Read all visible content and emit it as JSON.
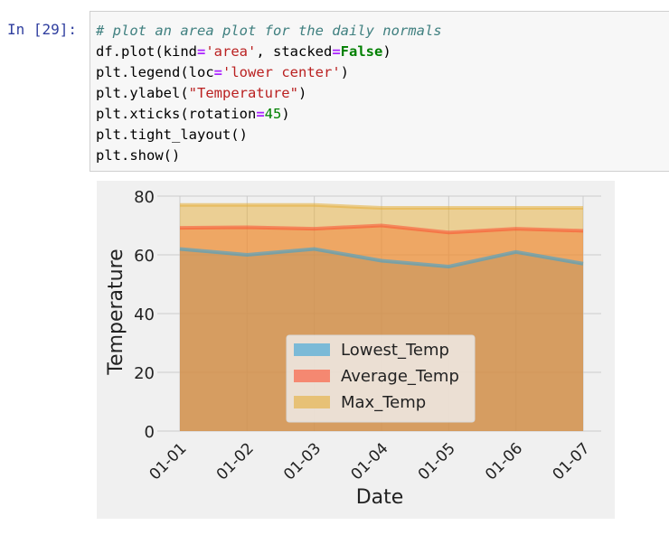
{
  "cell": {
    "prompt": "In [29]:",
    "code_lines": [
      [
        {
          "t": "# plot an area plot for the daily normals",
          "c": "cm"
        }
      ],
      [
        {
          "t": "df.plot(kind",
          "c": ""
        },
        {
          "t": "=",
          "c": "op"
        },
        {
          "t": "'area'",
          "c": "str"
        },
        {
          "t": ", stacked",
          "c": ""
        },
        {
          "t": "=",
          "c": "op"
        },
        {
          "t": "False",
          "c": "kw"
        },
        {
          "t": ")",
          "c": ""
        }
      ],
      [
        {
          "t": "plt.legend(loc",
          "c": ""
        },
        {
          "t": "=",
          "c": "op"
        },
        {
          "t": "'lower center'",
          "c": "str"
        },
        {
          "t": ")",
          "c": ""
        }
      ],
      [
        {
          "t": "plt.ylabel(",
          "c": ""
        },
        {
          "t": "\"Temperature\"",
          "c": "str"
        },
        {
          "t": ")",
          "c": ""
        }
      ],
      [
        {
          "t": "plt.xticks(rotation",
          "c": ""
        },
        {
          "t": "=",
          "c": "op"
        },
        {
          "t": "45",
          "c": "num"
        },
        {
          "t": ")",
          "c": ""
        }
      ],
      [
        {
          "t": "plt.tight_layout()",
          "c": ""
        }
      ],
      [
        {
          "t": "plt.show()",
          "c": ""
        }
      ]
    ]
  },
  "chart_data": {
    "type": "area",
    "style": "fivethirtyeight",
    "stacked": false,
    "categories": [
      "01-01",
      "01-02",
      "01-03",
      "01-04",
      "01-05",
      "01-06",
      "01-07"
    ],
    "series": [
      {
        "name": "Lowest_Temp",
        "color": "#30a2da",
        "values": [
          62,
          60,
          62,
          58,
          56,
          61,
          57
        ]
      },
      {
        "name": "Average_Temp",
        "color": "#fc4f30",
        "values": [
          69.2,
          69.4,
          68.9,
          70,
          67.6,
          68.9,
          68.2
        ]
      },
      {
        "name": "Max_Temp",
        "color": "#e5ae38",
        "values": [
          77,
          77,
          77,
          76,
          76,
          76,
          76
        ]
      }
    ],
    "xlabel": "Date",
    "ylabel": "Temperature",
    "ylim": [
      0,
      80
    ],
    "yticks": [
      0,
      20,
      40,
      60,
      80
    ],
    "grid": true,
    "legend": "lower center"
  }
}
